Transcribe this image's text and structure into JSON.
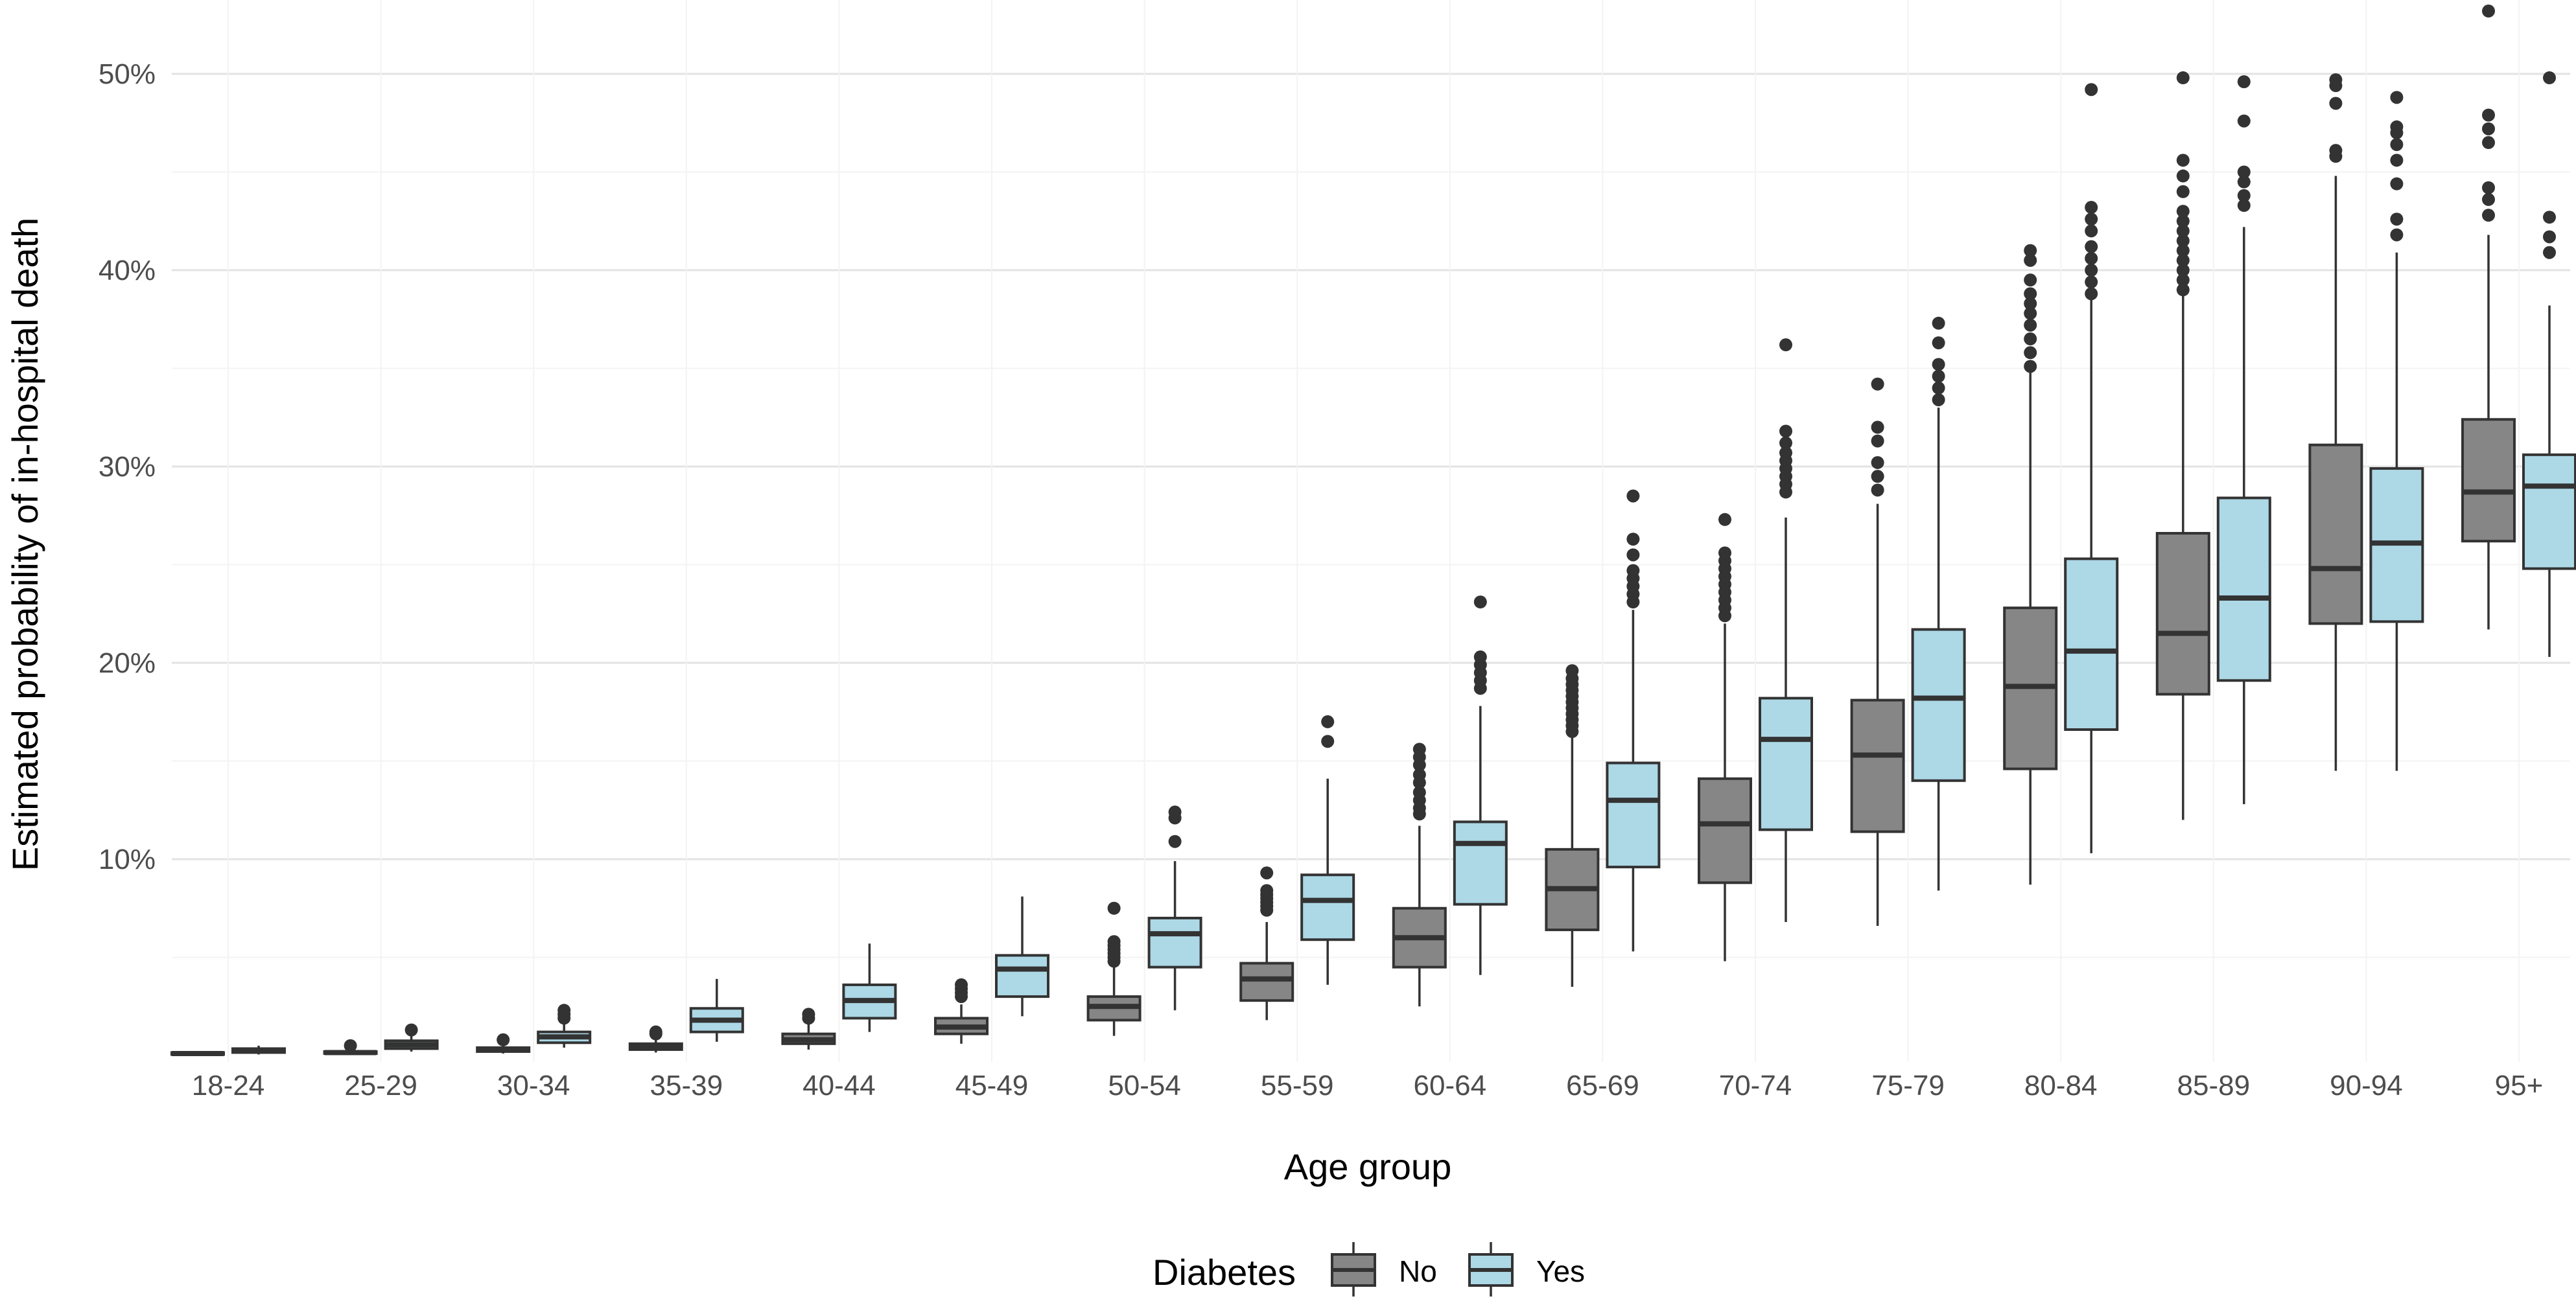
{
  "chart_data": {
    "type": "boxplot",
    "title": "",
    "xlabel": "Age group",
    "ylabel": "Estimated probability of in-hospital death",
    "ylim": [
      0,
      53
    ],
    "yticks": [
      10,
      20,
      30,
      40,
      50
    ],
    "ytick_labels": [
      "10%",
      "20%",
      "30%",
      "40%",
      "50%"
    ],
    "grid": true,
    "categories": [
      "18-24",
      "25-29",
      "30-34",
      "35-39",
      "40-44",
      "45-49",
      "50-54",
      "55-59",
      "60-64",
      "65-69",
      "70-74",
      "75-79",
      "80-84",
      "85-89",
      "90-94",
      "95+"
    ],
    "legend": {
      "title": "Diabetes",
      "position": "bottom"
    },
    "series": [
      {
        "name": "No",
        "color": "#868686",
        "boxes": [
          {
            "q1": 0.05,
            "median": 0.1,
            "q3": 0.15,
            "lo": 0.0,
            "hi": 0.2,
            "outliers": []
          },
          {
            "q1": 0.1,
            "median": 0.15,
            "q3": 0.2,
            "lo": 0.05,
            "hi": 0.3,
            "outliers": [
              0.5
            ]
          },
          {
            "q1": 0.2,
            "median": 0.3,
            "q3": 0.4,
            "lo": 0.1,
            "hi": 0.6,
            "outliers": [
              0.8
            ]
          },
          {
            "q1": 0.3,
            "median": 0.45,
            "q3": 0.6,
            "lo": 0.15,
            "hi": 0.9,
            "outliers": [
              1.1,
              1.2
            ]
          },
          {
            "q1": 0.6,
            "median": 0.8,
            "q3": 1.1,
            "lo": 0.3,
            "hi": 1.6,
            "outliers": [
              1.9,
              2.1
            ]
          },
          {
            "q1": 1.1,
            "median": 1.45,
            "q3": 1.9,
            "lo": 0.6,
            "hi": 2.6,
            "outliers": [
              3.0,
              3.2,
              3.4,
              3.6
            ]
          },
          {
            "q1": 1.8,
            "median": 2.5,
            "q3": 3.0,
            "lo": 1.0,
            "hi": 4.6,
            "outliers": [
              4.8,
              5.0,
              5.2,
              5.4,
              5.6,
              5.8,
              7.5
            ]
          },
          {
            "q1": 2.8,
            "median": 3.9,
            "q3": 4.7,
            "lo": 1.8,
            "hi": 6.8,
            "outliers": [
              7.4,
              7.6,
              7.8,
              8.0,
              8.2,
              8.4,
              9.3
            ]
          },
          {
            "q1": 4.5,
            "median": 6.0,
            "q3": 7.5,
            "lo": 2.5,
            "hi": 11.7,
            "outliers": [
              12.3,
              12.6,
              13.0,
              13.4,
              13.9,
              14.3,
              14.8,
              15.2,
              15.6
            ]
          },
          {
            "q1": 6.4,
            "median": 8.5,
            "q3": 10.5,
            "lo": 3.5,
            "hi": 16.2,
            "outliers": [
              16.5,
              16.8,
              17.1,
              17.4,
              17.7,
              18.0,
              18.3,
              18.6,
              18.9,
              19.2,
              19.6
            ]
          },
          {
            "q1": 8.8,
            "median": 11.8,
            "q3": 14.1,
            "lo": 4.8,
            "hi": 22.0,
            "outliers": [
              22.4,
              22.8,
              23.2,
              23.6,
              24.0,
              24.4,
              24.8,
              25.2,
              25.6,
              27.3
            ]
          },
          {
            "q1": 11.4,
            "median": 15.3,
            "q3": 18.1,
            "lo": 6.6,
            "hi": 28.1,
            "outliers": [
              28.8,
              29.5,
              30.2,
              31.3,
              32.0,
              34.2
            ]
          },
          {
            "q1": 14.6,
            "median": 18.8,
            "q3": 22.8,
            "lo": 8.7,
            "hi": 35.0,
            "outliers": [
              35.1,
              35.8,
              36.5,
              37.2,
              37.8,
              38.3,
              38.8,
              39.5,
              40.5,
              41.0
            ]
          },
          {
            "q1": 18.4,
            "median": 21.5,
            "q3": 26.6,
            "lo": 12.0,
            "hi": 38.7,
            "outliers": [
              39.0,
              39.5,
              40.0,
              40.5,
              41.0,
              41.5,
              42.0,
              42.5,
              43.0,
              44.0,
              44.8,
              45.6,
              49.8
            ]
          },
          {
            "q1": 22.0,
            "median": 24.8,
            "q3": 31.1,
            "lo": 14.5,
            "hi": 44.8,
            "outliers": [
              45.8,
              46.1,
              48.5,
              49.4,
              49.7
            ]
          },
          {
            "q1": 26.2,
            "median": 28.7,
            "q3": 32.4,
            "lo": 21.7,
            "hi": 41.8,
            "outliers": [
              42.8,
              43.6,
              44.2,
              46.5,
              47.2,
              47.9,
              53.2
            ]
          }
        ]
      },
      {
        "name": "Yes",
        "color": "#add8e6",
        "boxes": [
          {
            "q1": 0.15,
            "median": 0.25,
            "q3": 0.35,
            "lo": 0.05,
            "hi": 0.5,
            "outliers": []
          },
          {
            "q1": 0.35,
            "median": 0.55,
            "q3": 0.75,
            "lo": 0.2,
            "hi": 1.0,
            "outliers": [
              1.3
            ]
          },
          {
            "q1": 0.65,
            "median": 0.95,
            "q3": 1.2,
            "lo": 0.4,
            "hi": 1.7,
            "outliers": [
              1.9,
              2.1,
              2.3
            ]
          },
          {
            "q1": 1.2,
            "median": 1.8,
            "q3": 2.4,
            "lo": 0.7,
            "hi": 3.9,
            "outliers": []
          },
          {
            "q1": 1.9,
            "median": 2.8,
            "q3": 3.6,
            "lo": 1.2,
            "hi": 5.7,
            "outliers": []
          },
          {
            "q1": 3.0,
            "median": 4.4,
            "q3": 5.1,
            "lo": 2.0,
            "hi": 8.1,
            "outliers": []
          },
          {
            "q1": 4.5,
            "median": 6.2,
            "q3": 7.0,
            "lo": 2.3,
            "hi": 9.9,
            "outliers": [
              10.9,
              12.1,
              12.4
            ]
          },
          {
            "q1": 5.9,
            "median": 7.9,
            "q3": 9.2,
            "lo": 3.6,
            "hi": 14.1,
            "outliers": [
              16.0,
              17.0
            ]
          },
          {
            "q1": 7.7,
            "median": 10.8,
            "q3": 11.9,
            "lo": 4.1,
            "hi": 17.8,
            "outliers": [
              18.7,
              19.1,
              19.5,
              19.9,
              20.3,
              23.1
            ]
          },
          {
            "q1": 9.6,
            "median": 13.0,
            "q3": 14.9,
            "lo": 5.3,
            "hi": 22.7,
            "outliers": [
              23.1,
              23.5,
              23.9,
              24.3,
              24.7,
              25.5,
              26.3,
              28.5
            ]
          },
          {
            "q1": 11.5,
            "median": 16.1,
            "q3": 18.2,
            "lo": 6.8,
            "hi": 27.4,
            "outliers": [
              28.7,
              29.1,
              29.5,
              29.9,
              30.3,
              30.7,
              31.2,
              31.8,
              36.2
            ]
          },
          {
            "q1": 14.0,
            "median": 18.2,
            "q3": 21.7,
            "lo": 8.4,
            "hi": 33.0,
            "outliers": [
              33.4,
              34.0,
              34.6,
              35.2,
              36.3,
              37.3
            ]
          },
          {
            "q1": 16.6,
            "median": 20.6,
            "q3": 25.3,
            "lo": 10.3,
            "hi": 38.5,
            "outliers": [
              38.8,
              39.4,
              40.0,
              40.6,
              41.2,
              42.0,
              42.6,
              43.2,
              49.2
            ]
          },
          {
            "q1": 19.1,
            "median": 23.3,
            "q3": 28.4,
            "lo": 12.8,
            "hi": 42.2,
            "outliers": [
              43.3,
              43.8,
              44.5,
              45.0,
              47.6,
              49.6
            ]
          },
          {
            "q1": 22.1,
            "median": 26.1,
            "q3": 29.9,
            "lo": 14.5,
            "hi": 40.9,
            "outliers": [
              41.8,
              42.6,
              44.4,
              45.6,
              46.4,
              47.0,
              47.3,
              48.8
            ]
          },
          {
            "q1": 24.8,
            "median": 29.0,
            "q3": 30.6,
            "lo": 20.3,
            "hi": 38.2,
            "outliers": [
              40.9,
              41.7,
              42.7,
              49.8
            ]
          }
        ]
      }
    ]
  }
}
